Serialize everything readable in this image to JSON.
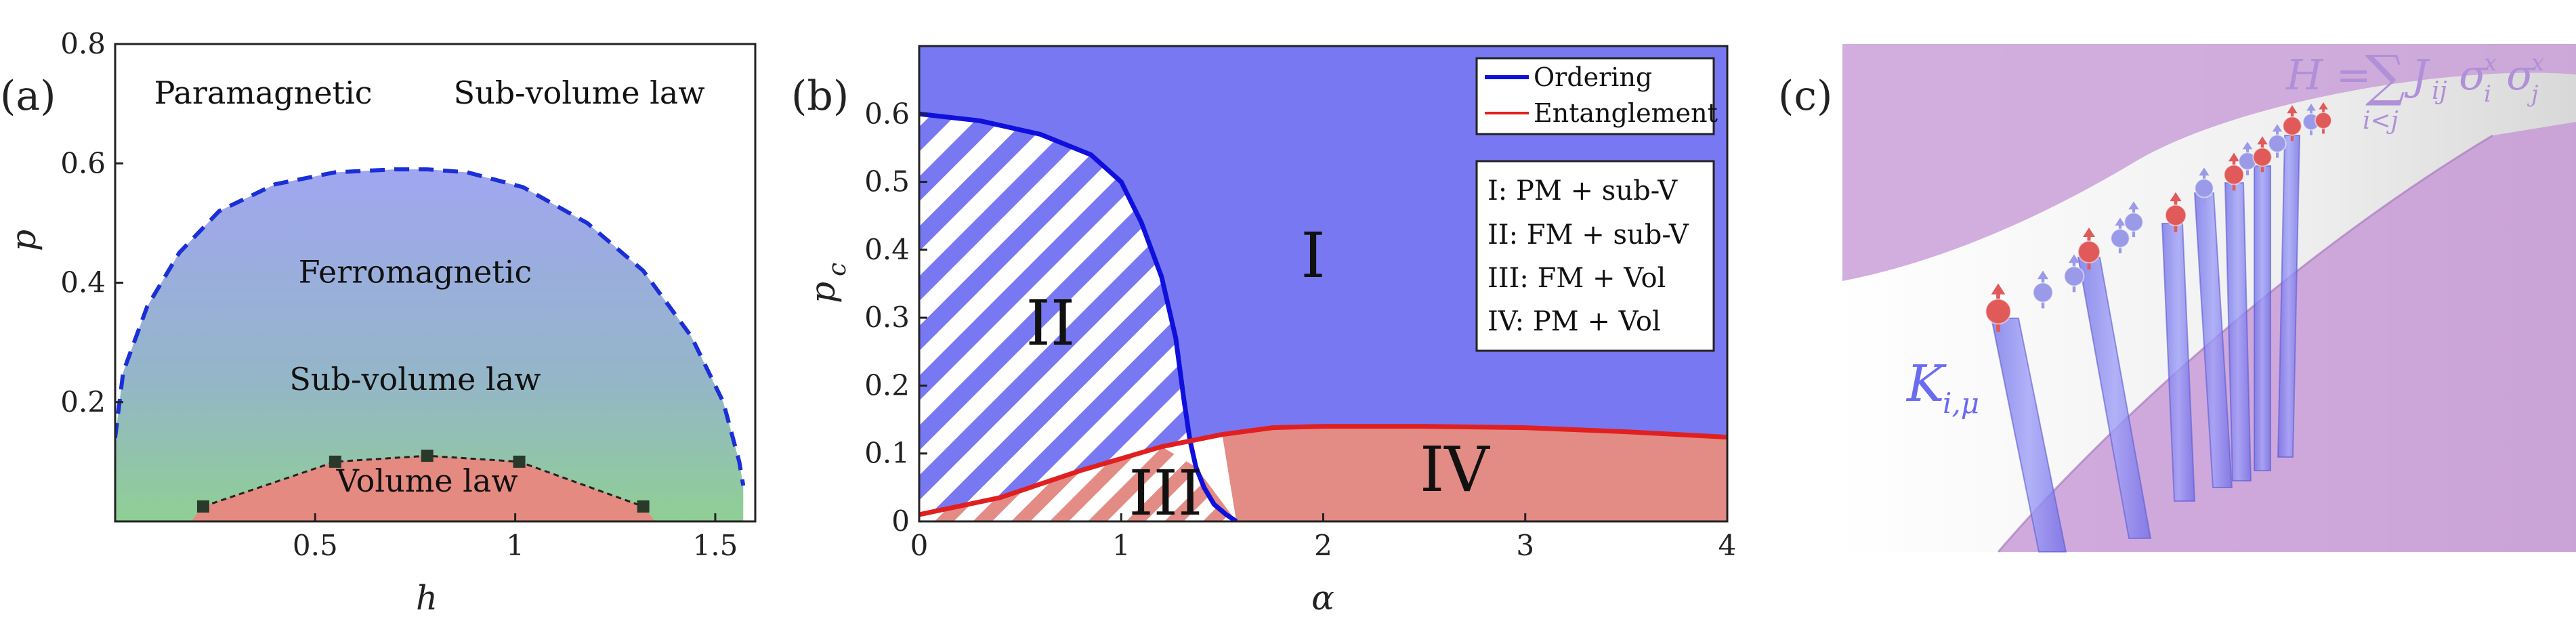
{
  "panels": {
    "a": "(a)",
    "b": "(b)",
    "c": "(c)"
  },
  "chart_data": [
    {
      "type": "area",
      "xlabel": "h",
      "ylabel": "p",
      "xlim": [
        0,
        1.6
      ],
      "ylim": [
        0,
        0.8
      ],
      "xticks": [
        "0.5",
        "1",
        "1.5"
      ],
      "yticks": [
        "0.2",
        "0.4",
        "0.6",
        "0.8"
      ],
      "region_labels": [
        {
          "text": "Paramagnetic",
          "x": 0.37,
          "y": 0.7
        },
        {
          "text": "Sub-volume law",
          "x": 1.16,
          "y": 0.7
        },
        {
          "text": "Ferromagnetic",
          "x": 0.75,
          "y": 0.4
        },
        {
          "text": "Sub-volume law",
          "x": 0.75,
          "y": 0.22
        },
        {
          "text": "Volume law",
          "x": 0.78,
          "y": 0.05
        }
      ],
      "boundary_dashed": {
        "h": [
          0.0,
          0.02,
          0.08,
          0.16,
          0.26,
          0.4,
          0.55,
          0.7,
          0.78,
          0.88,
          1.02,
          1.18,
          1.32,
          1.44,
          1.52,
          1.56,
          1.57
        ],
        "p": [
          0.14,
          0.25,
          0.36,
          0.45,
          0.52,
          0.565,
          0.585,
          0.59,
          0.59,
          0.585,
          0.56,
          0.5,
          0.42,
          0.31,
          0.2,
          0.1,
          0.06
        ]
      },
      "volume_points": {
        "h": [
          0.22,
          0.55,
          0.78,
          1.01,
          1.32
        ],
        "p": [
          0.025,
          0.1,
          0.11,
          0.1,
          0.025
        ]
      },
      "colors": {
        "ferro_top": "#9aa3ee",
        "ferro_bottom": "#8fc79a",
        "volume": "#e48a80",
        "boundary": "#1a2fd6"
      }
    },
    {
      "type": "area",
      "xlabel": "α",
      "ylabel_main": "p",
      "ylabel_sub": "c",
      "xlim": [
        0,
        4
      ],
      "ylim": [
        0,
        0.7
      ],
      "xticks": [
        "0",
        "1",
        "2",
        "3",
        "4"
      ],
      "yticks": [
        "0",
        "0.1",
        "0.2",
        "0.3",
        "0.4",
        "0.5",
        "0.6"
      ],
      "legend": [
        "Ordering",
        "Entanglement"
      ],
      "legend_position": "top-right",
      "info_box": [
        "I: PM + sub-V",
        "II: FM + sub-V",
        "III: FM + Vol",
        "IV: PM + Vol"
      ],
      "region_labels": [
        {
          "text": "I",
          "x": 1.95,
          "y": 0.39
        },
        {
          "text": "II",
          "x": 0.65,
          "y": 0.29
        },
        {
          "text": "III",
          "x": 1.22,
          "y": 0.04
        },
        {
          "text": "IV",
          "x": 2.65,
          "y": 0.075
        }
      ],
      "series": [
        {
          "name": "Ordering",
          "x": [
            0.0,
            0.3,
            0.6,
            0.85,
            1.0,
            1.1,
            1.2,
            1.27,
            1.31,
            1.34,
            1.37,
            1.41,
            1.46,
            1.52,
            1.57
          ],
          "y": [
            0.6,
            0.59,
            0.57,
            0.54,
            0.5,
            0.44,
            0.36,
            0.27,
            0.18,
            0.12,
            0.08,
            0.05,
            0.025,
            0.01,
            0.0
          ],
          "color": "#1010dd"
        },
        {
          "name": "Entanglement",
          "x": [
            0.0,
            0.4,
            0.8,
            1.2,
            1.5,
            1.75,
            2.0,
            2.5,
            3.0,
            3.5,
            4.0
          ],
          "y": [
            0.01,
            0.035,
            0.075,
            0.11,
            0.128,
            0.138,
            0.14,
            0.14,
            0.138,
            0.132,
            0.124
          ],
          "color": "#e02020"
        }
      ],
      "colors": {
        "region_I": "#7878f2",
        "region_IV": "#e38b85",
        "hatch_blue": "#7878f2",
        "hatch_red": "#e38b85"
      }
    }
  ],
  "illustration": {
    "hamiltonian_lhs": "H =",
    "hamiltonian_sum": "∑",
    "hamiltonian_sum_index": "i<j",
    "hamiltonian_terms": "J",
    "hamiltonian_sub_ij": "ij",
    "sigma_1": "σ",
    "sigma_1_sub": "i",
    "sigma_1_sup": "x",
    "sigma_2": "σ",
    "sigma_2_sub": "j",
    "sigma_2_sup": "x",
    "kraus_symbol": "K",
    "kraus_sub": "i,μ",
    "colors": {
      "membrane": "#c79ad6",
      "tube": "#7c7cf0",
      "spin_red": "#e05a5a",
      "spin_blue": "#9a9ae8",
      "label": "#6b6bf0",
      "formula": "#b090d8"
    }
  }
}
